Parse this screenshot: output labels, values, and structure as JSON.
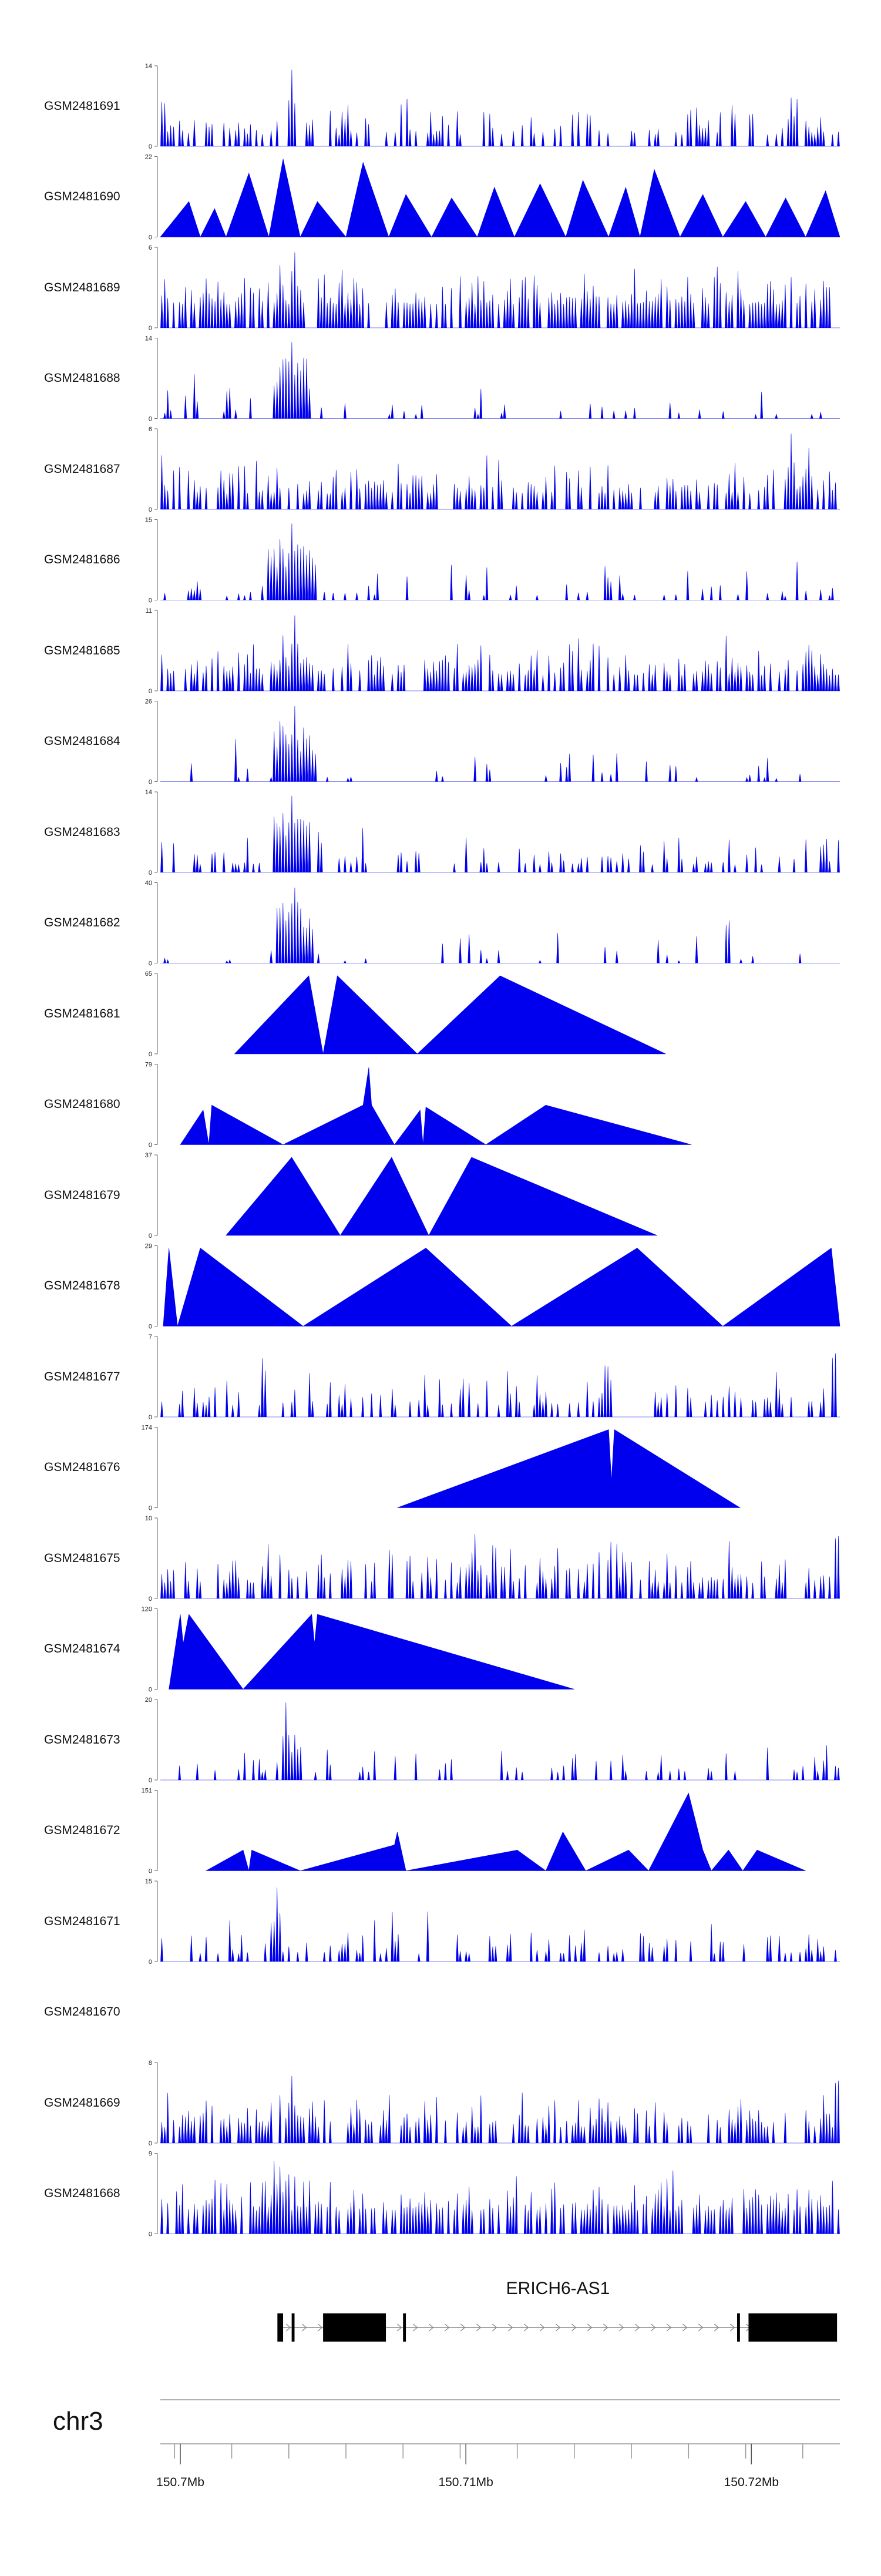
{
  "chart_data": {
    "type": "area",
    "chromosome": "chr3",
    "gene": {
      "name": "ERICH6-AS1",
      "exons_mb": [
        [
          150.7034,
          150.7036
        ],
        [
          150.7039,
          150.704
        ],
        [
          150.705,
          150.7072
        ],
        [
          150.7078,
          150.7079
        ],
        [
          150.7195,
          150.7196
        ],
        [
          150.7199,
          150.723
        ]
      ]
    },
    "x_axis": {
      "range_mb": [
        150.6993,
        150.7231
      ],
      "major_ticks": [
        {
          "value": 150.7,
          "label": "150.7Mb"
        },
        {
          "value": 150.71,
          "label": "150.71Mb"
        },
        {
          "value": 150.72,
          "label": "150.72Mb"
        }
      ],
      "minor_tick_step_mb": 0.002
    },
    "tracks": [
      {
        "name": "GSM2481691",
        "ymax": 14,
        "pattern": "dense",
        "seed": 11,
        "peaks": [
          {
            "mb": 150.7039,
            "h": 14
          },
          {
            "mb": 150.6994,
            "h": 10
          },
          {
            "mb": 150.7214,
            "h": 9
          }
        ],
        "density": 0.45,
        "base": 0.15
      },
      {
        "name": "GSM2481690",
        "ymax": 22,
        "pattern": "sparse",
        "seed": 7,
        "points": [
          [
            150.6993,
            0
          ],
          [
            150.7003,
            10
          ],
          [
            150.7007,
            0
          ],
          [
            150.7012,
            8
          ],
          [
            150.7016,
            0
          ],
          [
            150.7024,
            18
          ],
          [
            150.7031,
            0
          ],
          [
            150.7036,
            22
          ],
          [
            150.7042,
            0
          ],
          [
            150.7048,
            10
          ],
          [
            150.7058,
            0
          ],
          [
            150.7064,
            21
          ],
          [
            150.7073,
            0
          ],
          [
            150.7079,
            12
          ],
          [
            150.7088,
            0
          ],
          [
            150.7095,
            11
          ],
          [
            150.7104,
            0
          ],
          [
            150.711,
            14
          ],
          [
            150.7117,
            0
          ],
          [
            150.7126,
            15
          ],
          [
            150.7135,
            0
          ],
          [
            150.7141,
            16
          ],
          [
            150.715,
            0
          ],
          [
            150.7156,
            14
          ],
          [
            150.7161,
            0
          ],
          [
            150.7166,
            19
          ],
          [
            150.7175,
            0
          ],
          [
            150.7183,
            12
          ],
          [
            150.719,
            0
          ],
          [
            150.7198,
            10
          ],
          [
            150.7205,
            0
          ],
          [
            150.7212,
            11
          ],
          [
            150.7219,
            0
          ],
          [
            150.7226,
            13
          ],
          [
            150.7231,
            0
          ]
        ]
      },
      {
        "name": "GSM2481689",
        "ymax": 6,
        "pattern": "dense",
        "seed": 23,
        "peaks": [
          {
            "mb": 150.704,
            "h": 6
          },
          {
            "mb": 150.7035,
            "h": 5
          }
        ],
        "density": 0.75,
        "base": 0.3
      },
      {
        "name": "GSM2481688",
        "ymax": 14,
        "pattern": "dense",
        "seed": 31,
        "peaks": [
          {
            "mb": 150.7039,
            "h": 14
          },
          {
            "mb": 150.7036,
            "h": 10
          },
          {
            "mb": 150.7042,
            "h": 9
          }
        ],
        "density": 0.18,
        "base": 0.05,
        "cluster": [
          150.7032,
          150.7045
        ]
      },
      {
        "name": "GSM2481687",
        "ymax": 6,
        "pattern": "dense",
        "seed": 41,
        "peaks": [
          {
            "mb": 150.7214,
            "h": 6
          },
          {
            "mb": 150.722,
            "h": 5
          }
        ],
        "density": 0.6,
        "base": 0.2
      },
      {
        "name": "GSM2481686",
        "ymax": 15,
        "pattern": "dense",
        "seed": 53,
        "peaks": [
          {
            "mb": 150.7039,
            "h": 15
          },
          {
            "mb": 150.7036,
            "h": 10
          },
          {
            "mb": 150.7043,
            "h": 9
          }
        ],
        "density": 0.18,
        "base": 0.05,
        "cluster": [
          150.703,
          150.7048
        ]
      },
      {
        "name": "GSM2481685",
        "ymax": 11,
        "pattern": "dense",
        "seed": 61,
        "peaks": [
          {
            "mb": 150.704,
            "h": 11
          },
          {
            "mb": 150.7036,
            "h": 8
          }
        ],
        "density": 0.7,
        "base": 0.2
      },
      {
        "name": "GSM2481684",
        "ymax": 26,
        "pattern": "dense",
        "seed": 71,
        "peaks": [
          {
            "mb": 150.704,
            "h": 26
          },
          {
            "mb": 150.7037,
            "h": 15
          },
          {
            "mb": 150.7043,
            "h": 14
          }
        ],
        "density": 0.15,
        "base": 0.04,
        "cluster": [
          150.7032,
          150.7048
        ]
      },
      {
        "name": "GSM2481683",
        "ymax": 14,
        "pattern": "dense",
        "seed": 83,
        "peaks": [
          {
            "mb": 150.7039,
            "h": 14
          },
          {
            "mb": 150.7036,
            "h": 9
          },
          {
            "mb": 150.7226,
            "h": 7
          }
        ],
        "density": 0.35,
        "base": 0.1,
        "cluster": [
          150.7032,
          150.7046
        ]
      },
      {
        "name": "GSM2481682",
        "ymax": 40,
        "pattern": "dense",
        "seed": 97,
        "peaks": [
          {
            "mb": 150.704,
            "h": 40
          },
          {
            "mb": 150.7037,
            "h": 22
          },
          {
            "mb": 150.7043,
            "h": 20
          }
        ],
        "density": 0.12,
        "base": 0.03,
        "cluster": [
          150.7033,
          150.7047
        ]
      },
      {
        "name": "GSM2481681",
        "ymax": 65,
        "pattern": "sparse",
        "points": [
          [
            150.7019,
            0
          ],
          [
            150.7045,
            65
          ],
          [
            150.705,
            0
          ],
          [
            150.7055,
            65
          ],
          [
            150.7083,
            0
          ],
          [
            150.7112,
            65
          ],
          [
            150.717,
            0
          ]
        ]
      },
      {
        "name": "GSM2481680",
        "ymax": 79,
        "pattern": "sparse",
        "points": [
          [
            150.7,
            0
          ],
          [
            150.7008,
            35
          ],
          [
            150.701,
            0
          ],
          [
            150.7011,
            40
          ],
          [
            150.7036,
            0
          ],
          [
            150.7064,
            40
          ],
          [
            150.7066,
            78
          ],
          [
            150.7067,
            40
          ],
          [
            150.7075,
            0
          ],
          [
            150.7084,
            35
          ],
          [
            150.7085,
            0
          ],
          [
            150.7086,
            38
          ],
          [
            150.7107,
            0
          ],
          [
            150.7128,
            40
          ],
          [
            150.7179,
            0
          ]
        ]
      },
      {
        "name": "GSM2481679",
        "ymax": 37,
        "pattern": "sparse",
        "points": [
          [
            150.7016,
            0
          ],
          [
            150.7039,
            37
          ],
          [
            150.7056,
            0
          ],
          [
            150.7074,
            37
          ],
          [
            150.7087,
            0
          ],
          [
            150.7102,
            37
          ],
          [
            150.7167,
            0
          ]
        ]
      },
      {
        "name": "GSM2481678",
        "ymax": 29,
        "pattern": "sparse",
        "points": [
          [
            150.6994,
            0
          ],
          [
            150.6996,
            29
          ],
          [
            150.6999,
            0
          ],
          [
            150.7007,
            29
          ],
          [
            150.7043,
            0
          ],
          [
            150.7086,
            29
          ],
          [
            150.7116,
            0
          ],
          [
            150.716,
            29
          ],
          [
            150.719,
            0
          ],
          [
            150.7228,
            29
          ],
          [
            150.7231,
            0
          ]
        ]
      },
      {
        "name": "GSM2481677",
        "ymax": 7,
        "pattern": "dense",
        "seed": 131,
        "peaks": [
          {
            "mb": 150.7229,
            "h": 7
          },
          {
            "mb": 150.7029,
            "h": 6
          },
          {
            "mb": 150.715,
            "h": 5
          }
        ],
        "density": 0.45,
        "base": 0.15
      },
      {
        "name": "GSM2481676",
        "ymax": 174,
        "pattern": "sparse",
        "points": [
          [
            150.7076,
            0
          ],
          [
            150.715,
            174
          ],
          [
            150.7151,
            60
          ],
          [
            150.7152,
            174
          ],
          [
            150.7196,
            0
          ]
        ]
      },
      {
        "name": "GSM2481675",
        "ymax": 10,
        "pattern": "dense",
        "seed": 151,
        "peaks": [
          {
            "mb": 150.723,
            "h": 10
          },
          {
            "mb": 150.7103,
            "h": 9
          }
        ],
        "density": 0.55,
        "base": 0.2
      },
      {
        "name": "GSM2481674",
        "ymax": 120,
        "pattern": "sparse",
        "points": [
          [
            150.6996,
            0
          ],
          [
            150.7,
            115
          ],
          [
            150.7001,
            70
          ],
          [
            150.7003,
            115
          ],
          [
            150.7022,
            0
          ],
          [
            150.7046,
            115
          ],
          [
            150.7047,
            70
          ],
          [
            150.7048,
            115
          ],
          [
            150.7138,
            0
          ]
        ]
      },
      {
        "name": "GSM2481673",
        "ymax": 20,
        "pattern": "dense",
        "seed": 171,
        "peaks": [
          {
            "mb": 150.7037,
            "h": 20
          },
          {
            "mb": 150.704,
            "h": 12
          },
          {
            "mb": 150.7226,
            "h": 7
          }
        ],
        "density": 0.25,
        "base": 0.1
      },
      {
        "name": "GSM2481672",
        "ymax": 151,
        "pattern": "sparse",
        "points": [
          [
            150.7009,
            0
          ],
          [
            150.7022,
            40
          ],
          [
            150.7024,
            0
          ],
          [
            150.7025,
            40
          ],
          [
            150.7042,
            0
          ],
          [
            150.7075,
            50
          ],
          [
            150.7076,
            75
          ],
          [
            150.7079,
            0
          ],
          [
            150.7118,
            40
          ],
          [
            150.7128,
            0
          ],
          [
            150.7134,
            75
          ],
          [
            150.7142,
            0
          ],
          [
            150.7157,
            40
          ],
          [
            150.7164,
            0
          ],
          [
            150.7178,
            150
          ],
          [
            150.7183,
            40
          ],
          [
            150.7186,
            0
          ],
          [
            150.7192,
            40
          ],
          [
            150.7197,
            0
          ],
          [
            150.7202,
            40
          ],
          [
            150.7219,
            0
          ]
        ]
      },
      {
        "name": "GSM2481671",
        "ymax": 15,
        "pattern": "dense",
        "seed": 191,
        "peaks": [
          {
            "mb": 150.7034,
            "h": 15
          },
          {
            "mb": 150.7032,
            "h": 8
          }
        ],
        "density": 0.35,
        "base": 0.1
      },
      {
        "name": "GSM2481670",
        "ymax": null,
        "pattern": "empty"
      },
      {
        "name": "GSM2481669",
        "ymax": 8,
        "pattern": "dense",
        "seed": 211,
        "peaks": [
          {
            "mb": 150.723,
            "h": 8
          },
          {
            "mb": 150.7039,
            "h": 7
          }
        ],
        "density": 0.6,
        "base": 0.2
      },
      {
        "name": "GSM2481668",
        "ymax": 9,
        "pattern": "dense",
        "seed": 223,
        "peaks": [
          {
            "mb": 150.7033,
            "h": 9
          },
          {
            "mb": 150.7035,
            "h": 8
          }
        ],
        "density": 0.7,
        "base": 0.3
      }
    ],
    "fill_color": "#0000ee",
    "grid": false,
    "legend": "none"
  }
}
